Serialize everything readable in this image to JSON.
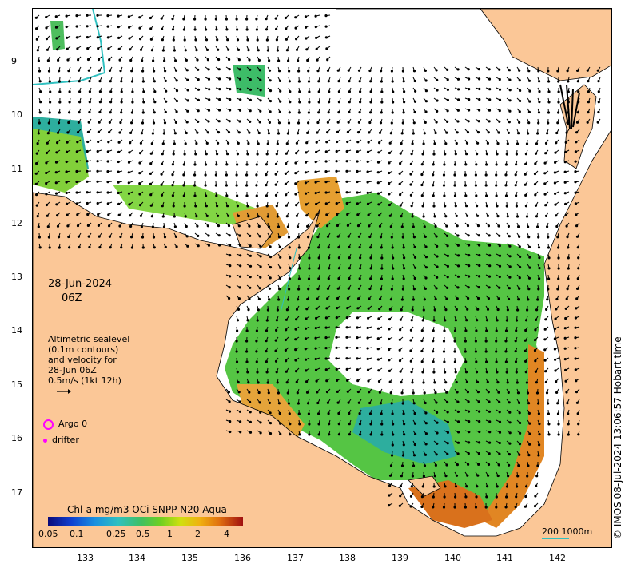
{
  "map": {
    "date": "28-Jun-2024",
    "time": "06Z",
    "legend_lines": [
      "Altimetric sealevel",
      "(0.1m contours)",
      "and velocity for",
      "28-Jun 06Z",
      "0.5m/s (1kt 12h)"
    ],
    "argo_label": "Argo 0",
    "drifter_label": "drifter",
    "colorbar_title": "Chl-a mg/m3 OCi SNPP N20 Aqua",
    "colorbar_ticks": [
      "0.05",
      "0.1",
      "0.25",
      "0.5",
      "1",
      "2",
      "4"
    ],
    "scale_label": "200  1000m",
    "credit": "© IMOS 08-Jul-2024 13:06:57 Hobart time",
    "lat_ticks": [
      "9",
      "10",
      "11",
      "12",
      "13",
      "14",
      "15",
      "16",
      "17"
    ],
    "lon_ticks": [
      "133",
      "134",
      "135",
      "136",
      "137",
      "138",
      "139",
      "140",
      "141",
      "142"
    ],
    "colors": {
      "land": "#fbc797",
      "ocean_no_data": "#ffffff",
      "chl_green": "#44bb33",
      "chl_teal": "#22aa99",
      "chl_orange": "#e08a1a",
      "argo_marker": "#ff00ff",
      "isobath": "#30c0c0"
    }
  }
}
